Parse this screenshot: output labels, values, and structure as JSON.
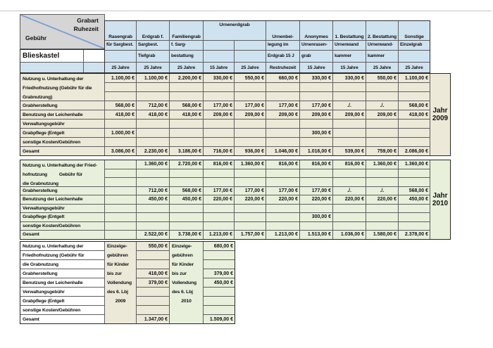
{
  "corner": {
    "gebuehr": "Gebühr",
    "grabart": "Grabart",
    "ruhezeit": "Ruhezeit"
  },
  "city": "Blieskastel",
  "colors": {
    "header_blue": "#cfe2ef",
    "beige_2009": "#ece9d8",
    "green_2010": "#e8f0dc",
    "white": "#ffffff",
    "corner_gray": "#d5d5d5",
    "diagonal_blue": "#7ba2d6"
  },
  "header": {
    "row1": [
      {
        "label": "Rasengrab",
        "span": 1
      },
      {
        "label": "Erdgrab f.",
        "span": 1
      },
      {
        "label": "Familiengrab",
        "span": 1
      },
      {
        "label": "Urnenerdgrab",
        "span": 2
      },
      {
        "label": "Urnenbei-",
        "span": 1
      },
      {
        "label": "Anonymes",
        "span": 1
      },
      {
        "label": "1. Bestattung",
        "span": 1
      },
      {
        "label": "2. Bestattung",
        "span": 1
      },
      {
        "label": "Sonstige",
        "span": 1
      }
    ],
    "row2": [
      "für Sargbest.",
      "Sargbest.",
      "f. Sarg-",
      "",
      "",
      "legung im",
      "Urnenrasen-",
      "Urnenwand",
      "Urnenwand-",
      "Einzelgrab"
    ],
    "row3": [
      "",
      "Tiefgrab",
      "bestattung",
      "",
      "",
      "Erdgrab 15 J",
      "grab",
      "kammer",
      "kammer",
      ""
    ],
    "durations": [
      "25 Jahre",
      "25 Jahre",
      "25 Jahre",
      "15 Jahre",
      "25 Jahre",
      "Restruhezeit",
      "15 Jahre",
      "15 Jahre",
      "25 Jahre",
      "25 Jahre"
    ]
  },
  "blocks": [
    {
      "year_word": "Jahr",
      "year": "2009",
      "bg": "beige_2009",
      "merged_label_lines": [
        "Nutzung u. Unterhaltung der",
        "Friedhofnutzung (Gebühr für die",
        "Grabnutzung)"
      ],
      "rows": [
        {
          "label": null,
          "values": [
            "1.100,00 €",
            "1.100,00 €",
            "2.200,00 €",
            "330,00 €",
            "550,00 €",
            "660,00 €",
            "330,00 €",
            "330,00 €",
            "550,00 €",
            "1.100,00 €"
          ]
        },
        {
          "label": null,
          "values": [
            "",
            "",
            "",
            "",
            "",
            "",
            "",
            "",
            "",
            ""
          ]
        },
        {
          "label": null,
          "values": [
            "",
            "",
            "",
            "",
            "",
            "",
            "",
            "",
            "",
            ""
          ]
        },
        {
          "label": "Grabherstellung",
          "values": [
            "568,00 €",
            "712,00 €",
            "568,00 €",
            "177,00 €",
            "177,00 €",
            "177,00 €",
            "177,00 €",
            "./.",
            "./.",
            "568,00 €"
          ]
        },
        {
          "label": "Benutzung der Leichenhalle",
          "values": [
            "418,00 €",
            "418,00 €",
            "418,00 €",
            "209,00 €",
            "209,00 €",
            "209,00 €",
            "209,00 €",
            "209,00 €",
            "209,00 €",
            "418,00 €"
          ]
        },
        {
          "label": "Verwaltungsgebühr",
          "values": [
            "",
            "",
            "",
            "",
            "",
            "",
            "",
            "",
            "",
            ""
          ]
        },
        {
          "label": "Grabpflege (Entgelt",
          "values": [
            "1.000,00 €",
            "",
            "",
            "",
            "",
            "",
            "300,00 €",
            "",
            "",
            ""
          ]
        },
        {
          "label": "sonstige Kosten/Gebühren",
          "values": [
            "",
            "",
            "",
            "",
            "",
            "",
            "",
            "",
            "",
            ""
          ]
        },
        {
          "label": "Gesamt",
          "values": [
            "3.086,00 €",
            "2.230,00 €",
            "3.186,00 €",
            "716,00 €",
            "936,00 €",
            "1.046,00 €",
            "1.016,00 €",
            "539,00 €",
            "759,00 €",
            "2.086,00 €"
          ]
        }
      ]
    },
    {
      "year_word": "Jahr",
      "year": "2010",
      "bg": "green_2010",
      "merged_label_lines": [
        "Nutzung u. Unterhaltung der Fried-",
        "hofnutzung          Gebühr für",
        "die Grabnutzung"
      ],
      "rows": [
        {
          "label": null,
          "values": [
            "",
            "1.360,00 €",
            "2.720,00 €",
            "816,00 €",
            "1.360,00 €",
            "816,00 €",
            "816,00 €",
            "816,00 €",
            "1.360,00 €",
            "1.360,00 €"
          ]
        },
        {
          "label": null,
          "values": [
            "",
            "",
            "",
            "",
            "",
            "",
            "",
            "",
            "",
            ""
          ]
        },
        {
          "label": null,
          "values": [
            "",
            "",
            "",
            "",
            "",
            "",
            "",
            "",
            "",
            ""
          ]
        },
        {
          "label": "Grabherstellung",
          "values": [
            "",
            "712,00 €",
            "568,00 €",
            "177,00 €",
            "177,00 €",
            "177,00 €",
            "177,00 €",
            "./.",
            "./.",
            "568,00 €"
          ]
        },
        {
          "label": "Benutzung der Leichenhalle",
          "values": [
            "",
            "450,00 €",
            "450,00 €",
            "220,00 €",
            "220,00 €",
            "220,00 €",
            "220,00 €",
            "220,00 €",
            "220,00 €",
            "450,00 €"
          ]
        },
        {
          "label": "Verwaltungsgebühr",
          "values": [
            "",
            "",
            "",
            "",
            "",
            "",
            "",
            "",
            "",
            ""
          ]
        },
        {
          "label": "Grabpflege (Entgelt",
          "values": [
            "",
            "",
            "",
            "",
            "",
            "",
            "300,00 €",
            "",
            "",
            ""
          ]
        },
        {
          "label": "sonstige Kosten/Gebühren",
          "values": [
            "",
            "",
            "",
            "",
            "",
            "",
            "",
            "",
            "",
            ""
          ]
        },
        {
          "label": "Gesamt",
          "values": [
            "",
            "2.522,00 €",
            "3.738,00 €",
            "1.213,00 €",
            "1.757,00 €",
            "1.213,00 €",
            "1.513,00 €",
            "1.036,00 €",
            "1.580,00 €",
            "2.378,00 €"
          ]
        }
      ]
    }
  ],
  "bottom_block": {
    "row_labels": [
      "Nutzung u. Unterhaltung der",
      "Friedhofnutzung (Gebühr für",
      "die Grabnutzung",
      "Grabherstellung",
      "Benutzung der Leichenhalle",
      "Verwaltungsgebühr",
      "Grabpflege (Entgelt",
      "sonstige Kosten/Gebühren",
      "Gesamt"
    ],
    "columns": [
      {
        "type": "text",
        "bg": "beige_2009",
        "lines": [
          "Einzelge-",
          "gebühren",
          "für Kinder",
          "bis zur",
          "Vollendung",
          "des 6. Lbj",
          "2009",
          "",
          ""
        ]
      },
      {
        "type": "values",
        "bg": "beige_2009",
        "values": [
          "550,00 €",
          "",
          "",
          "418,00 €",
          "379,00 €",
          "",
          "",
          "",
          "1.347,00 €"
        ]
      },
      {
        "type": "text",
        "bg": "green_2010",
        "lines": [
          "Einzelge-",
          "gebühren",
          "für Kinder",
          "bis zur",
          "Vollendung",
          "des 6. Lbj",
          "2010",
          "",
          ""
        ]
      },
      {
        "type": "values",
        "bg": "green_2010",
        "values": [
          "680,00 €",
          "",
          "",
          "379,00 €",
          "450,00 €",
          "",
          "",
          "",
          "1.509,00 €"
        ]
      }
    ]
  }
}
